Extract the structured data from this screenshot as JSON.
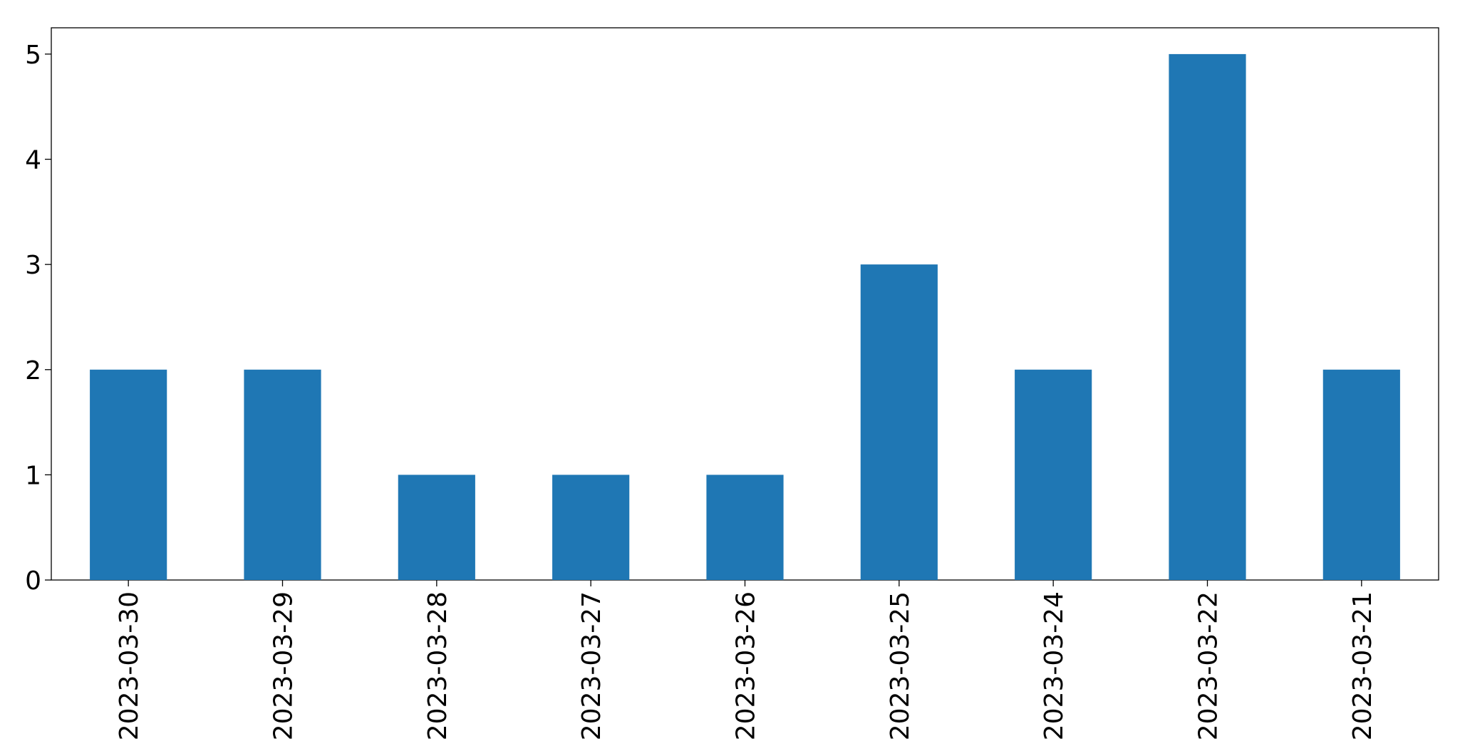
{
  "chart_data": {
    "type": "bar",
    "categories": [
      "2023-03-30",
      "2023-03-29",
      "2023-03-28",
      "2023-03-27",
      "2023-03-26",
      "2023-03-25",
      "2023-03-24",
      "2023-03-22",
      "2023-03-21"
    ],
    "values": [
      2,
      2,
      1,
      1,
      1,
      3,
      2,
      5,
      2
    ],
    "color": "#1f77b4",
    "ylim": [
      0,
      5.25
    ],
    "yticks": [
      0,
      1,
      2,
      3,
      4,
      5
    ],
    "grid": false
  }
}
